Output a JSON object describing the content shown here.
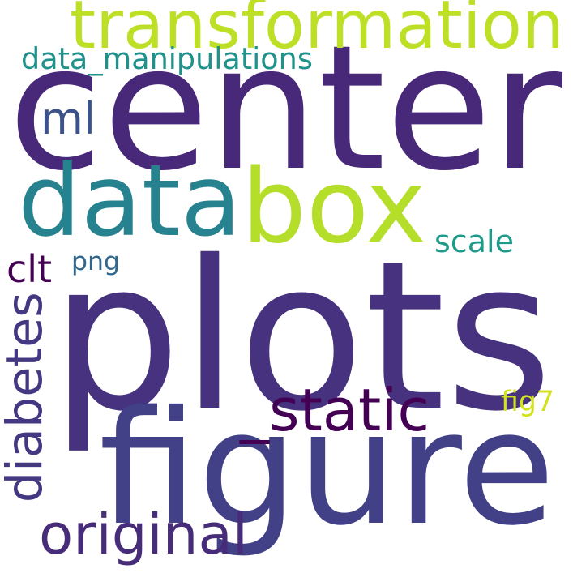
{
  "words": [
    {
      "id": "word-center",
      "text": "center",
      "color": "#482878"
    },
    {
      "id": "word-plots",
      "text": "plots",
      "color": "#46327e"
    },
    {
      "id": "word-figure",
      "text": "figure",
      "color": "#424086"
    },
    {
      "id": "word-box",
      "text": "box",
      "color": "#b5de2b"
    },
    {
      "id": "word-data",
      "text": "data",
      "color": "#26828e"
    },
    {
      "id": "word-transformation",
      "text": "transformation",
      "color": "#bddf26"
    },
    {
      "id": "word-static",
      "text": "_static",
      "color": "#440154"
    },
    {
      "id": "word-original",
      "text": "original",
      "color": "#472c7a"
    },
    {
      "id": "word-diabetes",
      "text": "diabetes",
      "color": "#453882"
    },
    {
      "id": "word-ml",
      "text": "ml",
      "color": "#3b528b"
    },
    {
      "id": "word-data-manipulations",
      "text": "data_manipulations",
      "color": "#21918c"
    },
    {
      "id": "word-scale",
      "text": "scale",
      "color": "#1f9a8a"
    },
    {
      "id": "word-png",
      "text": "png",
      "color": "#31688e"
    },
    {
      "id": "word-clt",
      "text": "clt",
      "color": "#440154"
    },
    {
      "id": "word-fig7",
      "text": "fig7",
      "color": "#d2e21b"
    }
  ]
}
